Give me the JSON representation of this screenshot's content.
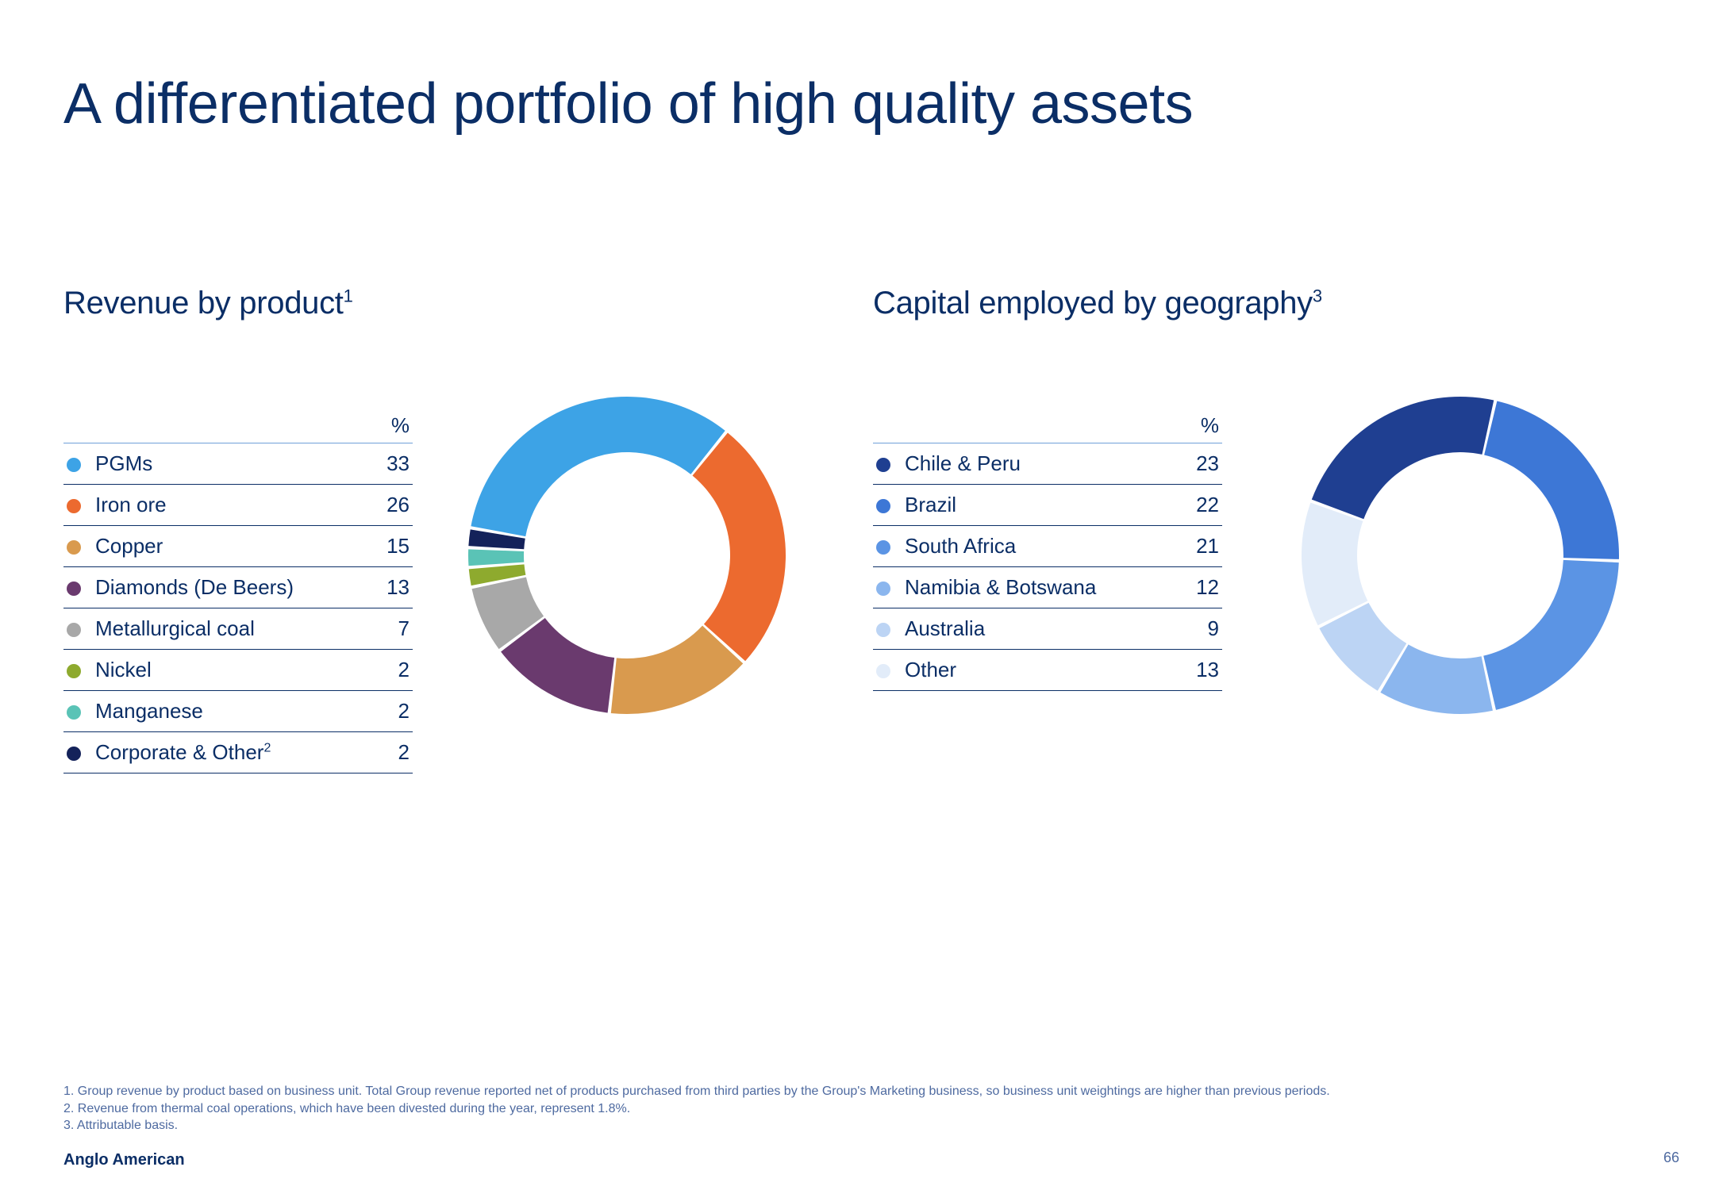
{
  "colors": {
    "brand_navy": "#0b2e66",
    "text_navy": "#0b2e66",
    "rule": "#6fa0d9",
    "footnote": "#4e6aa0",
    "white": "#ffffff"
  },
  "page": {
    "title": "A differentiated portfolio of high quality assets",
    "title_fontsize": 72,
    "title_color": "#0b2e66",
    "number": "66",
    "company": "Anglo American"
  },
  "footnotes": [
    "1. Group revenue by product based on business unit. Total Group revenue reported net of products purchased from third parties by the Group's Marketing business, so business unit weightings are higher than previous periods.",
    "2. Revenue from thermal coal operations, which have been divested during the year, represent 1.8%.",
    "3. Attributable basis."
  ],
  "charts": {
    "revenue_by_product": {
      "title": "Revenue by product",
      "sup": "1",
      "pct_header": "%",
      "type": "donut",
      "donut": {
        "size": 420,
        "outer_r": 200,
        "inner_r": 130,
        "start_angle_deg": -80,
        "gap_deg": 1.2,
        "background": "#ffffff"
      },
      "items": [
        {
          "label": "PGMs",
          "sup": "",
          "value": 33,
          "color": "#3da3e6"
        },
        {
          "label": "Iron ore",
          "sup": "",
          "value": 26,
          "color": "#ec6a2f"
        },
        {
          "label": "Copper",
          "sup": "",
          "value": 15,
          "color": "#d99a4e"
        },
        {
          "label": "Diamonds (De Beers)",
          "sup": "",
          "value": 13,
          "color": "#6a3a6e"
        },
        {
          "label": "Metallurgical coal",
          "sup": "",
          "value": 7,
          "color": "#a8a8a8"
        },
        {
          "label": "Nickel",
          "sup": "",
          "value": 2,
          "color": "#8eaa2e"
        },
        {
          "label": "Manganese",
          "sup": "",
          "value": 2,
          "color": "#5ac3b6"
        },
        {
          "label": "Corporate & Other",
          "sup": "2",
          "value": 2,
          "color": "#14225a"
        }
      ]
    },
    "capital_by_geography": {
      "title": "Capital employed by geography",
      "sup": "3",
      "pct_header": "%",
      "type": "donut",
      "donut": {
        "size": 420,
        "outer_r": 200,
        "inner_r": 130,
        "start_angle_deg": -70,
        "gap_deg": 1.2,
        "background": "#ffffff"
      },
      "items": [
        {
          "label": "Chile & Peru",
          "sup": "",
          "value": 23,
          "color": "#1f3f91"
        },
        {
          "label": "Brazil",
          "sup": "",
          "value": 22,
          "color": "#3d77d6"
        },
        {
          "label": "South Africa",
          "sup": "",
          "value": 21,
          "color": "#5b94e4"
        },
        {
          "label": "Namibia & Botswana",
          "sup": "",
          "value": 12,
          "color": "#8bb6ee"
        },
        {
          "label": "Australia",
          "sup": "",
          "value": 9,
          "color": "#bcd4f4"
        },
        {
          "label": "Other",
          "sup": "",
          "value": 13,
          "color": "#e2ecf9"
        }
      ]
    }
  }
}
